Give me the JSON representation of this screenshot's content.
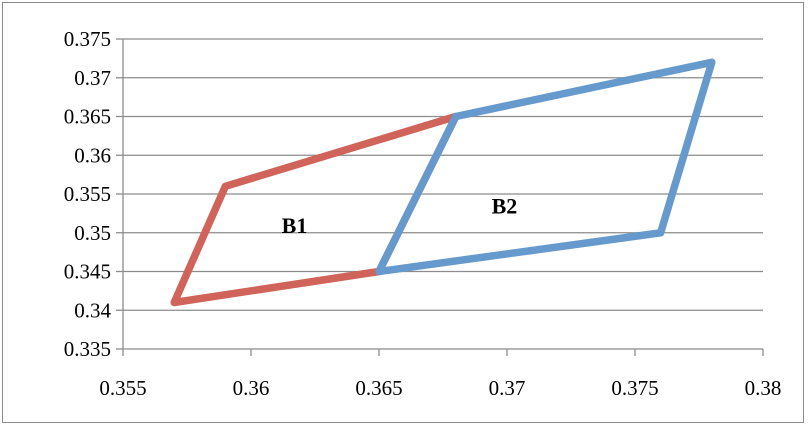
{
  "chart_data": {
    "type": "scatter",
    "title": "",
    "xlabel": "",
    "ylabel": "",
    "xlim": [
      0.355,
      0.38
    ],
    "ylim": [
      0.335,
      0.375
    ],
    "x_ticks": [
      "0.355",
      "0.36",
      "0.365",
      "0.37",
      "0.375",
      "0.38"
    ],
    "y_ticks": [
      "0.335",
      "0.34",
      "0.345",
      "0.35",
      "0.355",
      "0.36",
      "0.365",
      "0.37",
      "0.375"
    ],
    "grid": "horizontal",
    "legend": "none",
    "series": [
      {
        "color": "#d0635a",
        "points": [
          [
            0.357,
            0.341
          ],
          [
            0.359,
            0.356
          ],
          [
            0.368,
            0.365
          ],
          [
            0.365,
            0.345
          ],
          [
            0.357,
            0.341
          ]
        ]
      },
      {
        "color": "#6699cc",
        "points": [
          [
            0.365,
            0.345
          ],
          [
            0.368,
            0.365
          ],
          [
            0.378,
            0.372
          ],
          [
            0.376,
            0.35
          ],
          [
            0.365,
            0.345
          ]
        ]
      }
    ],
    "annotations": [
      {
        "text": "B1",
        "x": 0.3617,
        "y": 0.351
      },
      {
        "text": "B2",
        "x": 0.3699,
        "y": 0.3535
      }
    ]
  }
}
